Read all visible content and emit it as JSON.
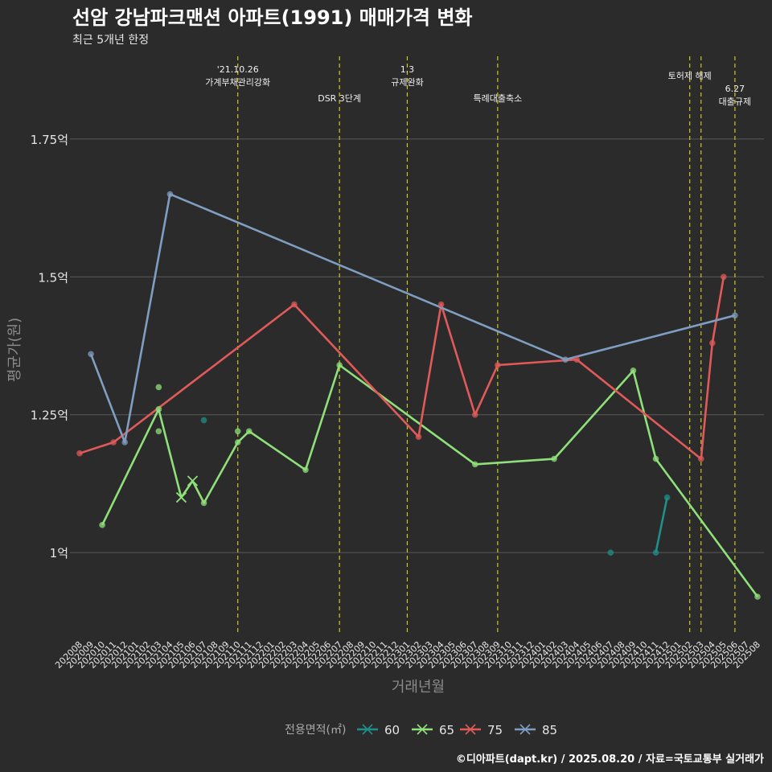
{
  "title": "선암 강남파크맨션 아파트(1991) 매매가격 변화",
  "subtitle": "최근 5개년 한정",
  "caption": "©디아파트(dapt.kr) / 2025.08.20 / 자료=국토교통부 실거래가",
  "colors": {
    "background": "#2b2b2b",
    "grid": "#5a5a5a",
    "text": "#e6e6e6",
    "axis_title": "#8a8a8a",
    "event_line": "#c8c81e",
    "s60": "#1f8f8a",
    "s65": "#8fe07a",
    "s75": "#e05a5a",
    "s85": "#7f9ec2"
  },
  "chart_data": {
    "type": "line",
    "title": "선암 강남파크맨션 아파트(1991) 매매가격 변화",
    "xlabel": "거래년월",
    "ylabel": "평균가(원)",
    "ylim": [
      0.85,
      1.9
    ],
    "yticks": [
      1.0,
      1.25,
      1.5,
      1.75
    ],
    "ytick_labels": [
      "1억",
      "1.25억",
      "1.5억",
      "1.75억"
    ],
    "x": [
      "202008",
      "202009",
      "202010",
      "202011",
      "202012",
      "202101",
      "202102",
      "202103",
      "202104",
      "202105",
      "202106",
      "202107",
      "202108",
      "202109",
      "202110",
      "202111",
      "202112",
      "202201",
      "202202",
      "202203",
      "202204",
      "202205",
      "202206",
      "202207",
      "202208",
      "202209",
      "202210",
      "202211",
      "202212",
      "202301",
      "202302",
      "202303",
      "202304",
      "202305",
      "202306",
      "202307",
      "202308",
      "202309",
      "202310",
      "202311",
      "202312",
      "202401",
      "202402",
      "202403",
      "202404",
      "202405",
      "202406",
      "202407",
      "202408",
      "202409",
      "202410",
      "202411",
      "202412",
      "202501",
      "202502",
      "202503",
      "202504",
      "202505",
      "202506",
      "202507",
      "202508"
    ],
    "grid": true,
    "legend": {
      "title": "전용면적(㎡)",
      "position": "bottom",
      "items": [
        "60",
        "65",
        "75",
        "85"
      ]
    },
    "events": [
      {
        "x": "202110",
        "label": "'21.10.26\n가계부채관리강화",
        "row": 1
      },
      {
        "x": "202207",
        "label": "DSR 3단계",
        "row": 2
      },
      {
        "x": "202301",
        "label": "1.3\n규제완화",
        "row": 1
      },
      {
        "x": "202309",
        "label": "특례대출축소",
        "row": 2
      },
      {
        "x": "202502",
        "label": "토허제 해제",
        "row": 0
      },
      {
        "x": "202503",
        "label": "",
        "row": 0
      },
      {
        "x": "202506",
        "label": "6.27\n대출규제",
        "row": 3
      }
    ],
    "series": [
      {
        "name": "60",
        "color_key": "s60",
        "line": [
          [
            "202411",
            1.0
          ],
          [
            "202412",
            1.1
          ]
        ],
        "points": [
          [
            "202107",
            1.24
          ],
          [
            "202407",
            1.0
          ],
          [
            "202411",
            1.0
          ],
          [
            "202412",
            1.1
          ]
        ],
        "x_marks": []
      },
      {
        "name": "65",
        "color_key": "s65",
        "line": [
          [
            "202010",
            1.05
          ],
          [
            "202103",
            1.26
          ],
          [
            "202105",
            1.1
          ],
          [
            "202106",
            1.13
          ],
          [
            "202107",
            1.09
          ],
          [
            "202110",
            1.2
          ],
          [
            "202111",
            1.22
          ],
          [
            "202204",
            1.15
          ],
          [
            "202207",
            1.34
          ],
          [
            "202307",
            1.16
          ],
          [
            "202402",
            1.17
          ],
          [
            "202409",
            1.33
          ],
          [
            "202411",
            1.17
          ],
          [
            "202508",
            0.92
          ]
        ],
        "points": [
          [
            "202010",
            1.05
          ],
          [
            "202103",
            1.26
          ],
          [
            "202103",
            1.3
          ],
          [
            "202103",
            1.22
          ],
          [
            "202107",
            1.09
          ],
          [
            "202110",
            1.2
          ],
          [
            "202110",
            1.22
          ],
          [
            "202111",
            1.22
          ],
          [
            "202204",
            1.15
          ],
          [
            "202207",
            1.34
          ],
          [
            "202307",
            1.16
          ],
          [
            "202402",
            1.17
          ],
          [
            "202409",
            1.33
          ],
          [
            "202411",
            1.17
          ],
          [
            "202508",
            0.92
          ]
        ],
        "x_marks": [
          [
            "202105",
            1.1
          ],
          [
            "202106",
            1.13
          ]
        ]
      },
      {
        "name": "75",
        "color_key": "s75",
        "line": [
          [
            "202008",
            1.18
          ],
          [
            "202011",
            1.2
          ],
          [
            "202203",
            1.45
          ],
          [
            "202302",
            1.21
          ],
          [
            "202304",
            1.45
          ],
          [
            "202307",
            1.25
          ],
          [
            "202309",
            1.34
          ],
          [
            "202404",
            1.35
          ],
          [
            "202503",
            1.17
          ],
          [
            "202504",
            1.38
          ],
          [
            "202505",
            1.5
          ]
        ],
        "points": [
          [
            "202008",
            1.18
          ],
          [
            "202011",
            1.2
          ],
          [
            "202203",
            1.45
          ],
          [
            "202302",
            1.21
          ],
          [
            "202304",
            1.45
          ],
          [
            "202307",
            1.25
          ],
          [
            "202309",
            1.34
          ],
          [
            "202404",
            1.35
          ],
          [
            "202503",
            1.17
          ],
          [
            "202504",
            1.38
          ],
          [
            "202505",
            1.5
          ]
        ],
        "x_marks": []
      },
      {
        "name": "85",
        "color_key": "s85",
        "line": [
          [
            "202009",
            1.36
          ],
          [
            "202012",
            1.2
          ],
          [
            "202104",
            1.65
          ],
          [
            "202403",
            1.35
          ],
          [
            "202506",
            1.43
          ]
        ],
        "points": [
          [
            "202009",
            1.36
          ],
          [
            "202012",
            1.2
          ],
          [
            "202104",
            1.65
          ],
          [
            "202403",
            1.35
          ],
          [
            "202506",
            1.43
          ]
        ],
        "x_marks": []
      }
    ]
  }
}
